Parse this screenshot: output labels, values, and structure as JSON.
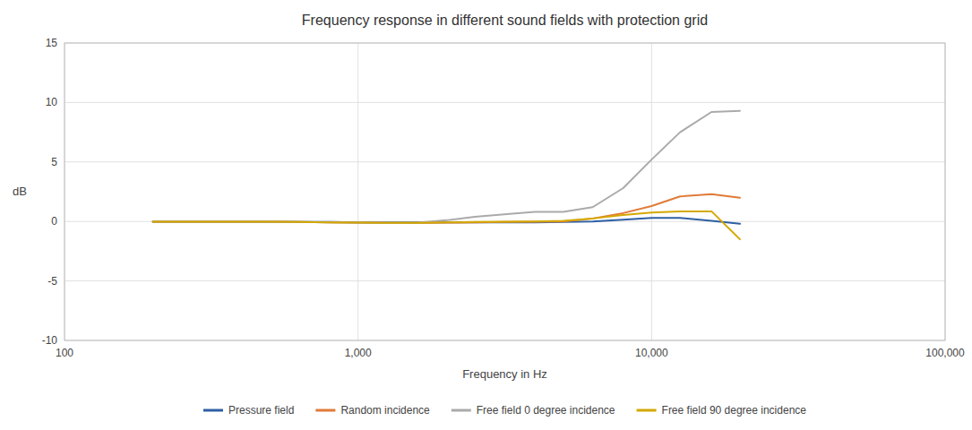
{
  "chart_data": {
    "type": "line",
    "title": "Frequency response in different sound fields with protection grid",
    "x_label": "Frequency in Hz",
    "y_label": "dB",
    "log": "x",
    "grid": true,
    "legend": "bottom",
    "xlim": [
      100,
      100000
    ],
    "ylim": [
      -10,
      15
    ],
    "xticks": [
      100,
      {
        "value": 1000,
        "label": "1,000"
      },
      {
        "value": 10000,
        "label": "10,000"
      },
      {
        "value": 100000,
        "label": "100,000"
      }
    ],
    "yticks": [
      -10,
      -5,
      0,
      5,
      10,
      15
    ],
    "x": [
      200,
      250,
      315,
      400,
      500,
      630,
      800,
      1000,
      1250,
      1600,
      2000,
      2500,
      3150,
      4000,
      5000,
      6300,
      8000,
      10000,
      12500,
      16000,
      20000
    ],
    "series": [
      {
        "name": "Pressure field",
        "color": "#2e5fa3",
        "values": [
          -0.03,
          -0.03,
          -0.03,
          -0.03,
          -0.03,
          -0.05,
          -0.05,
          -0.08,
          -0.08,
          -0.08,
          -0.08,
          -0.08,
          -0.08,
          -0.08,
          -0.05,
          0.0,
          0.15,
          0.3,
          0.3,
          0.05,
          -0.2
        ]
      },
      {
        "name": "Random incidence",
        "color": "#e07b39",
        "values": [
          -0.03,
          -0.03,
          -0.03,
          -0.03,
          -0.03,
          -0.05,
          -0.08,
          -0.1,
          -0.12,
          -0.12,
          -0.1,
          -0.08,
          -0.05,
          -0.02,
          0.0,
          0.25,
          0.7,
          1.3,
          2.1,
          2.3,
          2.0
        ]
      },
      {
        "name": "Free field 0 degree incidence",
        "color": "#aaaaaa",
        "values": [
          -0.03,
          -0.03,
          -0.03,
          -0.03,
          -0.03,
          -0.05,
          -0.08,
          -0.1,
          -0.12,
          -0.1,
          0.1,
          0.4,
          0.6,
          0.8,
          0.8,
          1.2,
          2.8,
          5.2,
          7.5,
          9.2,
          9.3
        ]
      },
      {
        "name": "Free field 90 degree incidence",
        "color": "#d4a800",
        "values": [
          -0.03,
          -0.03,
          -0.03,
          -0.03,
          -0.03,
          -0.05,
          -0.08,
          -0.1,
          -0.12,
          -0.12,
          -0.08,
          -0.05,
          -0.02,
          0.0,
          0.05,
          0.25,
          0.55,
          0.75,
          0.85,
          0.85,
          -1.5
        ]
      }
    ]
  }
}
